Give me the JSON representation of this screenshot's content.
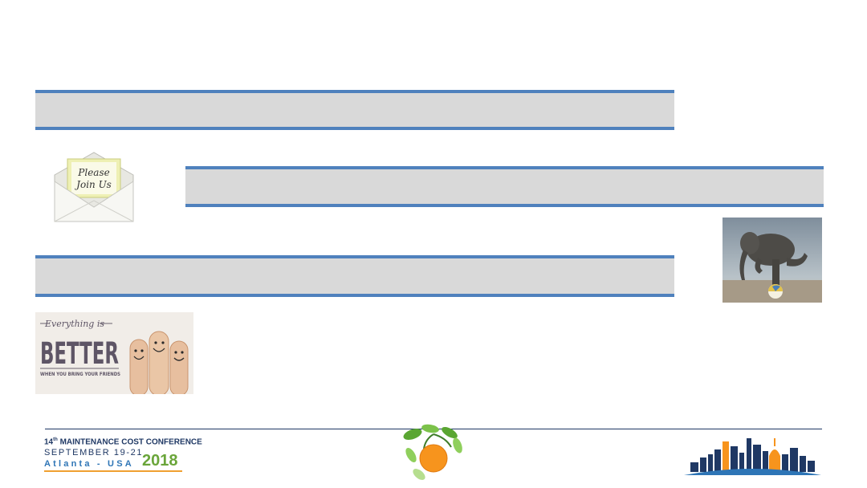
{
  "colors": {
    "bar_fill": "#d9d9d9",
    "bar_border": "#4f81bd",
    "navy": "#1f3864",
    "orange": "#f7941d",
    "green": "#6aa53a"
  },
  "bars": [
    {
      "text": ""
    },
    {
      "text": ""
    },
    {
      "text": ""
    }
  ],
  "images": {
    "invite_card": {
      "line1": "Please",
      "line2": "Join Us"
    },
    "better_card": {
      "top": "Everything is",
      "big": "BETTER",
      "bottom": "WHEN YOU BRING YOUR FRIENDS"
    }
  },
  "footer": {
    "conf_number": "14",
    "conf_suffix": "th",
    "conf_name": "MAINTENANCE COST CONFERENCE",
    "conf_dates": "SEPTEMBER 19-21",
    "conf_place": "Atlanta - USA",
    "conf_year": "2018"
  }
}
